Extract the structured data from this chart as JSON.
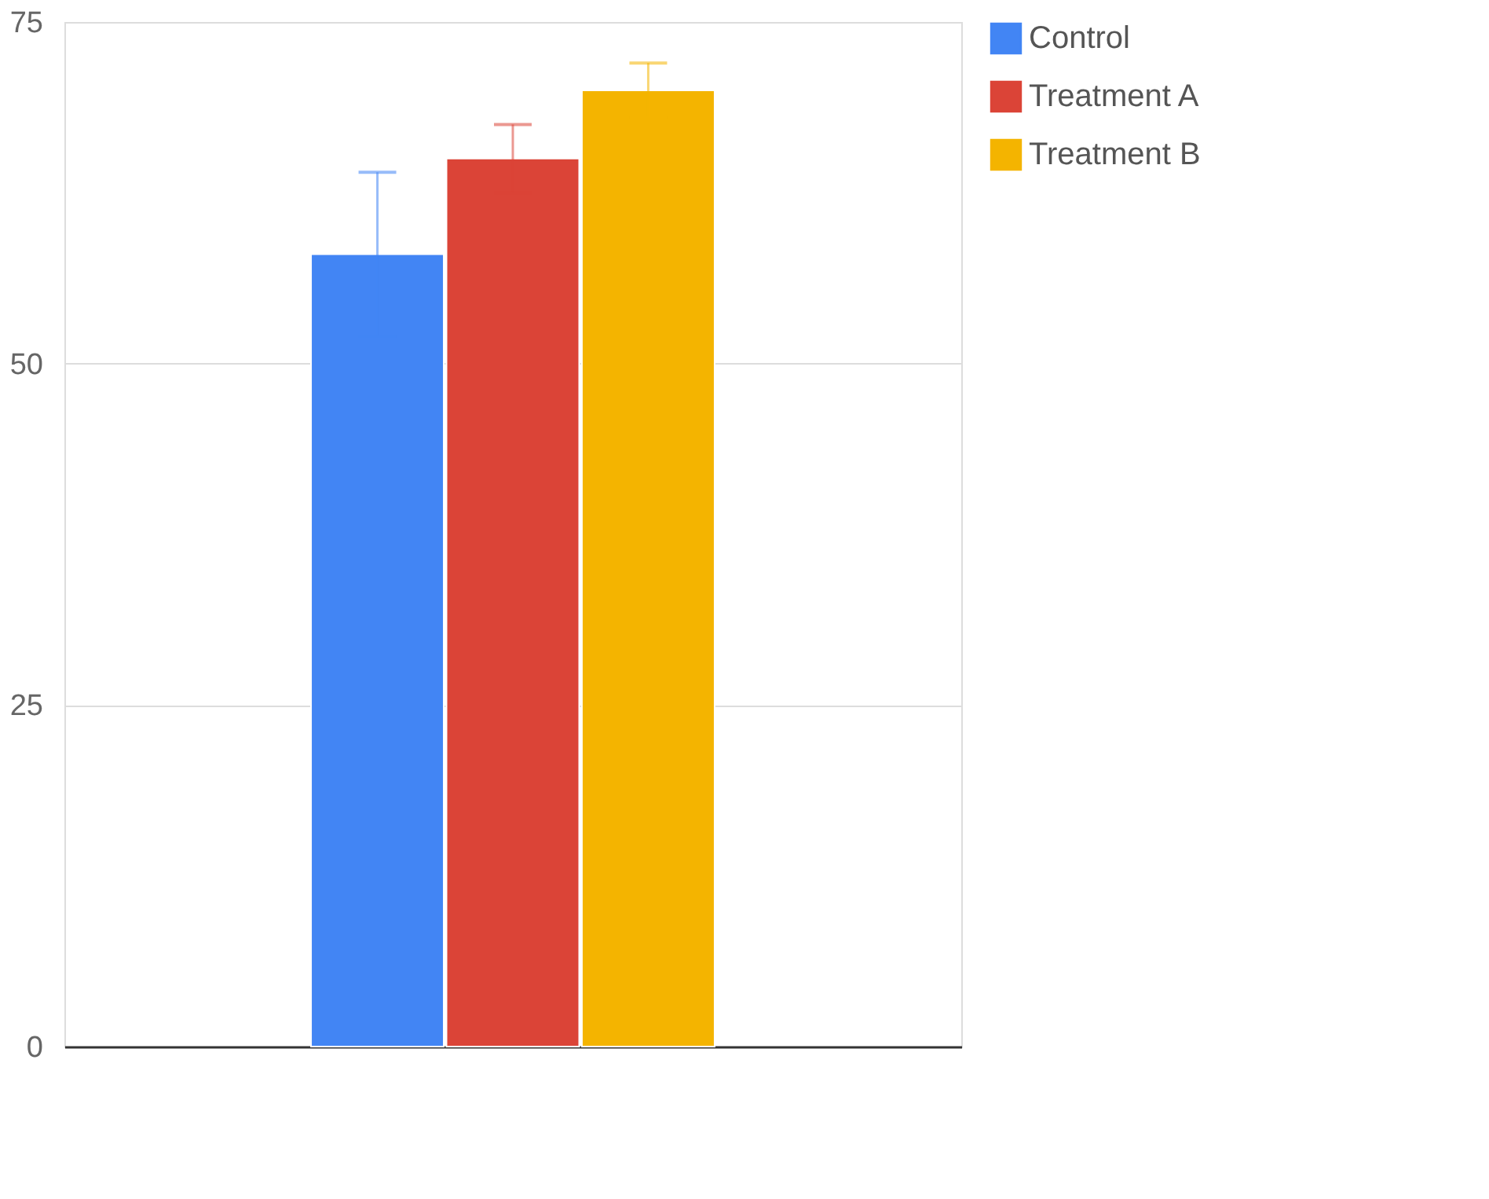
{
  "chart_data": {
    "type": "bar",
    "categories": [
      null
    ],
    "series": [
      {
        "name": "Control",
        "color": "#4285f4",
        "values": [
          58
        ],
        "errors": [
          6
        ]
      },
      {
        "name": "Treatment A",
        "color": "#db4437",
        "values": [
          65
        ],
        "errors": [
          2.5
        ]
      },
      {
        "name": "Treatment B",
        "color": "#f4b400",
        "values": [
          70
        ],
        "errors": [
          2
        ]
      }
    ],
    "ylim": [
      0,
      75
    ],
    "yticks": [
      0,
      25,
      50,
      75
    ],
    "grid": "y",
    "legend": "top right"
  }
}
